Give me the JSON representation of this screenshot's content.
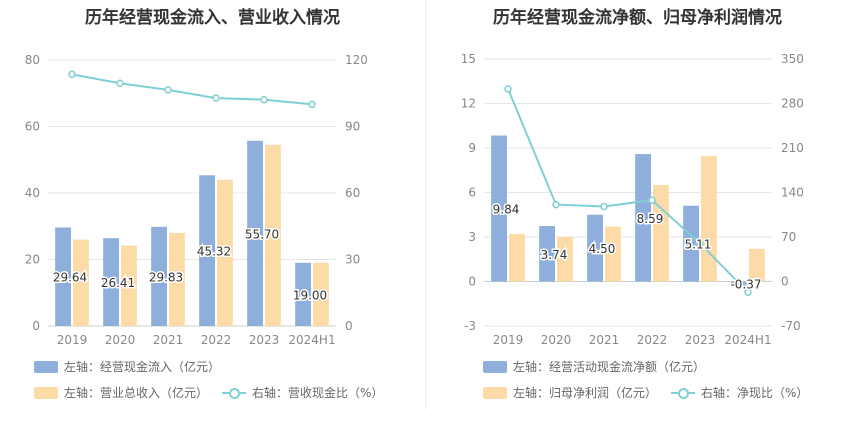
{
  "chart_data": [
    {
      "type": "bar",
      "title": "历年经营现金流入、营业收入情况",
      "categories": [
        "2019",
        "2020",
        "2021",
        "2022",
        "2023",
        "2024H1"
      ],
      "left_axis": {
        "ylim": [
          0,
          80
        ],
        "ticks": [
          "0",
          "20",
          "40",
          "60",
          "80"
        ]
      },
      "right_axis": {
        "ylim": [
          0,
          120
        ],
        "ticks": [
          "0",
          "30",
          "60",
          "90",
          "120"
        ]
      },
      "series": [
        {
          "name": "左轴：经营现金流入（亿元）",
          "type": "bar",
          "axis": "left",
          "color": "#8eaedc",
          "values": [
            29.64,
            26.41,
            29.83,
            45.32,
            55.7,
            19.0
          ],
          "labels": [
            "29.64",
            "26.41",
            "29.83",
            "45.32",
            "55.70",
            "19.00"
          ]
        },
        {
          "name": "左轴：营业总收入（亿元）",
          "type": "bar",
          "axis": "left",
          "color": "#fddba6",
          "values": [
            26.0,
            24.2,
            28.0,
            44.0,
            54.5,
            19.0
          ]
        },
        {
          "name": "右轴：营收现金比（%）",
          "type": "line",
          "axis": "right",
          "color": "#7fd0d4",
          "values": [
            113.5,
            109.5,
            106.5,
            102.8,
            102.1,
            100.0
          ]
        }
      ]
    },
    {
      "type": "bar",
      "title": "历年经营现金流净额、归母净利润情况",
      "categories": [
        "2019",
        "2020",
        "2021",
        "2022",
        "2023",
        "2024H1"
      ],
      "left_axis": {
        "ylim": [
          -3,
          15
        ],
        "ticks": [
          "-3",
          "0",
          "3",
          "6",
          "9",
          "12",
          "15"
        ]
      },
      "right_axis": {
        "ylim": [
          -70,
          350
        ],
        "ticks": [
          "-70",
          "0",
          "70",
          "140",
          "210",
          "280",
          "350"
        ]
      },
      "series": [
        {
          "name": "左轴：经营活动现金流净额（亿元）",
          "type": "bar",
          "axis": "left",
          "color": "#8eaedc",
          "values": [
            9.84,
            3.74,
            4.5,
            8.59,
            5.11,
            -0.37
          ],
          "labels": [
            "9.84",
            "3.74",
            "4.50",
            "8.59",
            "5.11",
            "-0.37"
          ]
        },
        {
          "name": "左轴：归母净利润（亿元）",
          "type": "bar",
          "axis": "left",
          "color": "#fddba6",
          "values": [
            3.2,
            3.0,
            3.7,
            6.5,
            8.45,
            2.2
          ]
        },
        {
          "name": "右轴：净现比（%）",
          "type": "line",
          "axis": "right",
          "color": "#7fd0d4",
          "values": [
            303,
            121,
            118,
            128,
            60,
            -17
          ]
        }
      ]
    }
  ]
}
